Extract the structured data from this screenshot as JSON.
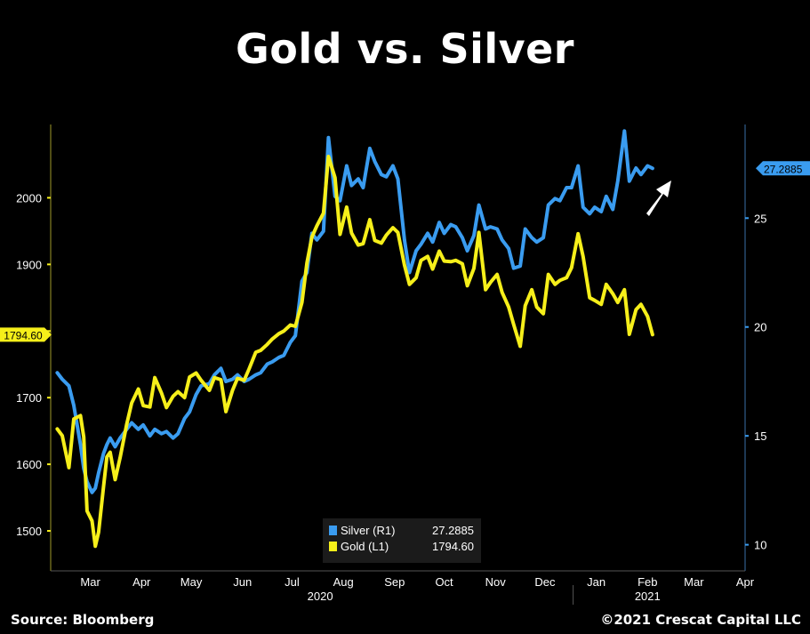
{
  "title": "Gold vs. Silver",
  "source": "Source: Bloomberg",
  "copyright": "©2021 Crescat Capital LLC",
  "colors": {
    "silver": "#3a9cf0",
    "gold": "#f6ef1a",
    "background": "#000000"
  },
  "annotation": "white-up-right-arrow",
  "chart_data": {
    "type": "line",
    "title": "Gold vs. Silver",
    "grid": false,
    "legend": "bottom-center",
    "x_axis": {
      "range": [
        "2020-02-20",
        "2021-04-15"
      ],
      "month_ticks": [
        {
          "label": "Mar",
          "date": "2020-03-15"
        },
        {
          "label": "Apr",
          "date": "2020-04-15"
        },
        {
          "label": "May",
          "date": "2020-05-15"
        },
        {
          "label": "Jun",
          "date": "2020-06-15"
        },
        {
          "label": "Jul",
          "date": "2020-07-15"
        },
        {
          "label": "Aug",
          "date": "2020-08-15"
        },
        {
          "label": "Sep",
          "date": "2020-09-15"
        },
        {
          "label": "Oct",
          "date": "2020-10-15"
        },
        {
          "label": "Nov",
          "date": "2020-11-15"
        },
        {
          "label": "Dec",
          "date": "2020-12-15"
        },
        {
          "label": "Jan",
          "date": "2021-01-15"
        },
        {
          "label": "Feb",
          "date": "2021-02-15"
        },
        {
          "label": "Mar",
          "date": "2021-03-15"
        },
        {
          "label": "Apr",
          "date": "2021-04-15"
        }
      ],
      "year_labels": [
        {
          "label": "2020",
          "date": "2020-08-01"
        },
        {
          "label": "2021",
          "date": "2021-02-15"
        }
      ],
      "year_divider": "2021-01-01"
    },
    "y_left": {
      "ticks": [
        1500,
        1600,
        1700,
        1800,
        1900,
        2000
      ],
      "range": [
        1440,
        2110
      ]
    },
    "y_right": {
      "ticks": [
        10,
        15,
        20,
        25
      ],
      "range": [
        8.8,
        29.3
      ]
    },
    "last_labels": {
      "gold": "1794.60",
      "silver": "27.2885"
    },
    "series": [
      {
        "name": "Silver (R1)",
        "last": "27.2885",
        "axis": "right",
        "color": "#3a9cf0",
        "points": [
          [
            "2020-02-24",
            17.9
          ],
          [
            "2020-02-27",
            17.6
          ],
          [
            "2020-03-02",
            17.3
          ],
          [
            "2020-03-05",
            16.4
          ],
          [
            "2020-03-09",
            14.6
          ],
          [
            "2020-03-11",
            13.5
          ],
          [
            "2020-03-13",
            12.9
          ],
          [
            "2020-03-16",
            12.4
          ],
          [
            "2020-03-18",
            12.6
          ],
          [
            "2020-03-20",
            13.3
          ],
          [
            "2020-03-23",
            14.2
          ],
          [
            "2020-03-25",
            14.6
          ],
          [
            "2020-03-27",
            14.9
          ],
          [
            "2020-03-30",
            14.5
          ],
          [
            "2020-04-02",
            14.9
          ],
          [
            "2020-04-06",
            15.3
          ],
          [
            "2020-04-09",
            15.6
          ],
          [
            "2020-04-13",
            15.3
          ],
          [
            "2020-04-16",
            15.5
          ],
          [
            "2020-04-20",
            15.0
          ],
          [
            "2020-04-23",
            15.3
          ],
          [
            "2020-04-27",
            15.1
          ],
          [
            "2020-04-30",
            15.2
          ],
          [
            "2020-05-04",
            14.9
          ],
          [
            "2020-05-07",
            15.1
          ],
          [
            "2020-05-11",
            15.8
          ],
          [
            "2020-05-14",
            16.1
          ],
          [
            "2020-05-18",
            16.9
          ],
          [
            "2020-05-21",
            17.3
          ],
          [
            "2020-05-26",
            17.4
          ],
          [
            "2020-05-29",
            17.8
          ],
          [
            "2020-06-02",
            18.1
          ],
          [
            "2020-06-05",
            17.5
          ],
          [
            "2020-06-09",
            17.6
          ],
          [
            "2020-06-12",
            17.8
          ],
          [
            "2020-06-16",
            17.5
          ],
          [
            "2020-06-19",
            17.6
          ],
          [
            "2020-06-23",
            17.8
          ],
          [
            "2020-06-26",
            17.9
          ],
          [
            "2020-06-30",
            18.3
          ],
          [
            "2020-07-03",
            18.4
          ],
          [
            "2020-07-07",
            18.6
          ],
          [
            "2020-07-10",
            18.7
          ],
          [
            "2020-07-14",
            19.3
          ],
          [
            "2020-07-17",
            19.6
          ],
          [
            "2020-07-21",
            22.1
          ],
          [
            "2020-07-24",
            22.5
          ],
          [
            "2020-07-27",
            24.3
          ],
          [
            "2020-07-30",
            24.0
          ],
          [
            "2020-08-03",
            24.4
          ],
          [
            "2020-08-06",
            28.7
          ],
          [
            "2020-08-10",
            26.0
          ],
          [
            "2020-08-13",
            25.8
          ],
          [
            "2020-08-17",
            27.4
          ],
          [
            "2020-08-20",
            26.5
          ],
          [
            "2020-08-24",
            26.8
          ],
          [
            "2020-08-27",
            26.4
          ],
          [
            "2020-08-31",
            28.2
          ],
          [
            "2020-09-03",
            27.6
          ],
          [
            "2020-09-07",
            27.0
          ],
          [
            "2020-09-10",
            26.9
          ],
          [
            "2020-09-14",
            27.4
          ],
          [
            "2020-09-17",
            26.8
          ],
          [
            "2020-09-21",
            24.0
          ],
          [
            "2020-09-24",
            22.5
          ],
          [
            "2020-09-28",
            23.5
          ],
          [
            "2020-10-01",
            23.8
          ],
          [
            "2020-10-05",
            24.3
          ],
          [
            "2020-10-08",
            23.9
          ],
          [
            "2020-10-12",
            24.8
          ],
          [
            "2020-10-15",
            24.3
          ],
          [
            "2020-10-19",
            24.7
          ],
          [
            "2020-10-22",
            24.6
          ],
          [
            "2020-10-26",
            24.1
          ],
          [
            "2020-10-29",
            23.5
          ],
          [
            "2020-11-02",
            24.2
          ],
          [
            "2020-11-05",
            25.6
          ],
          [
            "2020-11-09",
            24.5
          ],
          [
            "2020-11-12",
            24.6
          ],
          [
            "2020-11-16",
            24.5
          ],
          [
            "2020-11-19",
            24.0
          ],
          [
            "2020-11-23",
            23.6
          ],
          [
            "2020-11-26",
            22.7
          ],
          [
            "2020-11-30",
            22.8
          ],
          [
            "2020-12-03",
            24.5
          ],
          [
            "2020-12-07",
            24.1
          ],
          [
            "2020-12-10",
            23.9
          ],
          [
            "2020-12-14",
            24.1
          ],
          [
            "2020-12-17",
            25.6
          ],
          [
            "2020-12-21",
            25.9
          ],
          [
            "2020-12-24",
            25.8
          ],
          [
            "2020-12-28",
            26.4
          ],
          [
            "2020-12-31",
            26.4
          ],
          [
            "2021-01-04",
            27.4
          ],
          [
            "2021-01-07",
            25.5
          ],
          [
            "2021-01-11",
            25.2
          ],
          [
            "2021-01-14",
            25.5
          ],
          [
            "2021-01-18",
            25.3
          ],
          [
            "2021-01-21",
            26.0
          ],
          [
            "2021-01-25",
            25.4
          ],
          [
            "2021-01-28",
            26.7
          ],
          [
            "2021-02-01",
            29.0
          ],
          [
            "2021-02-04",
            26.7
          ],
          [
            "2021-02-08",
            27.3
          ],
          [
            "2021-02-11",
            27.0
          ],
          [
            "2021-02-15",
            27.4
          ],
          [
            "2021-02-18",
            27.2885
          ]
        ]
      },
      {
        "name": "Gold (L1)",
        "last": "1794.60",
        "axis": "left",
        "color": "#f6ef1a",
        "points": [
          [
            "2020-02-24",
            1653
          ],
          [
            "2020-02-27",
            1643
          ],
          [
            "2020-03-02",
            1595
          ],
          [
            "2020-03-05",
            1668
          ],
          [
            "2020-03-09",
            1673
          ],
          [
            "2020-03-11",
            1641
          ],
          [
            "2020-03-13",
            1530
          ],
          [
            "2020-03-16",
            1515
          ],
          [
            "2020-03-18",
            1477
          ],
          [
            "2020-03-20",
            1498
          ],
          [
            "2020-03-23",
            1567
          ],
          [
            "2020-03-25",
            1611
          ],
          [
            "2020-03-27",
            1618
          ],
          [
            "2020-03-30",
            1577
          ],
          [
            "2020-04-02",
            1610
          ],
          [
            "2020-04-06",
            1660
          ],
          [
            "2020-04-09",
            1692
          ],
          [
            "2020-04-13",
            1713
          ],
          [
            "2020-04-16",
            1688
          ],
          [
            "2020-04-20",
            1686
          ],
          [
            "2020-04-23",
            1730
          ],
          [
            "2020-04-27",
            1707
          ],
          [
            "2020-04-30",
            1685
          ],
          [
            "2020-05-04",
            1702
          ],
          [
            "2020-05-07",
            1709
          ],
          [
            "2020-05-11",
            1700
          ],
          [
            "2020-05-14",
            1731
          ],
          [
            "2020-05-18",
            1737
          ],
          [
            "2020-05-21",
            1726
          ],
          [
            "2020-05-26",
            1711
          ],
          [
            "2020-05-29",
            1730
          ],
          [
            "2020-06-02",
            1727
          ],
          [
            "2020-06-05",
            1679
          ],
          [
            "2020-06-09",
            1711
          ],
          [
            "2020-06-12",
            1729
          ],
          [
            "2020-06-16",
            1726
          ],
          [
            "2020-06-19",
            1743
          ],
          [
            "2020-06-23",
            1768
          ],
          [
            "2020-06-26",
            1771
          ],
          [
            "2020-06-30",
            1780
          ],
          [
            "2020-07-03",
            1788
          ],
          [
            "2020-07-07",
            1796
          ],
          [
            "2020-07-10",
            1800
          ],
          [
            "2020-07-14",
            1809
          ],
          [
            "2020-07-17",
            1807
          ],
          [
            "2020-07-21",
            1843
          ],
          [
            "2020-07-24",
            1902
          ],
          [
            "2020-07-27",
            1941
          ],
          [
            "2020-07-30",
            1958
          ],
          [
            "2020-08-03",
            1977
          ],
          [
            "2020-08-06",
            2062
          ],
          [
            "2020-08-10",
            2030
          ],
          [
            "2020-08-13",
            1945
          ],
          [
            "2020-08-17",
            1986
          ],
          [
            "2020-08-20",
            1947
          ],
          [
            "2020-08-24",
            1929
          ],
          [
            "2020-08-27",
            1931
          ],
          [
            "2020-08-31",
            1967
          ],
          [
            "2020-09-03",
            1936
          ],
          [
            "2020-09-07",
            1932
          ],
          [
            "2020-09-10",
            1944
          ],
          [
            "2020-09-14",
            1955
          ],
          [
            "2020-09-17",
            1948
          ],
          [
            "2020-09-21",
            1899
          ],
          [
            "2020-09-24",
            1870
          ],
          [
            "2020-09-28",
            1880
          ],
          [
            "2020-10-01",
            1906
          ],
          [
            "2020-10-05",
            1912
          ],
          [
            "2020-10-08",
            1893
          ],
          [
            "2020-10-12",
            1920
          ],
          [
            "2020-10-15",
            1905
          ],
          [
            "2020-10-19",
            1904
          ],
          [
            "2020-10-22",
            1906
          ],
          [
            "2020-10-26",
            1901
          ],
          [
            "2020-10-29",
            1868
          ],
          [
            "2020-11-02",
            1894
          ],
          [
            "2020-11-05",
            1948
          ],
          [
            "2020-11-09",
            1862
          ],
          [
            "2020-11-12",
            1873
          ],
          [
            "2020-11-16",
            1885
          ],
          [
            "2020-11-19",
            1858
          ],
          [
            "2020-11-23",
            1836
          ],
          [
            "2020-11-26",
            1810
          ],
          [
            "2020-11-30",
            1777
          ],
          [
            "2020-12-03",
            1838
          ],
          [
            "2020-12-07",
            1862
          ],
          [
            "2020-12-10",
            1836
          ],
          [
            "2020-12-14",
            1826
          ],
          [
            "2020-12-17",
            1885
          ],
          [
            "2020-12-21",
            1870
          ],
          [
            "2020-12-24",
            1876
          ],
          [
            "2020-12-28",
            1880
          ],
          [
            "2020-12-31",
            1895
          ],
          [
            "2021-01-04",
            1946
          ],
          [
            "2021-01-07",
            1912
          ],
          [
            "2021-01-11",
            1850
          ],
          [
            "2021-01-14",
            1846
          ],
          [
            "2021-01-18",
            1840
          ],
          [
            "2021-01-21",
            1870
          ],
          [
            "2021-01-25",
            1856
          ],
          [
            "2021-01-28",
            1843
          ],
          [
            "2021-02-01",
            1862
          ],
          [
            "2021-02-04",
            1795
          ],
          [
            "2021-02-08",
            1832
          ],
          [
            "2021-02-11",
            1840
          ],
          [
            "2021-02-15",
            1822
          ],
          [
            "2021-02-18",
            1794.6
          ]
        ]
      }
    ]
  }
}
